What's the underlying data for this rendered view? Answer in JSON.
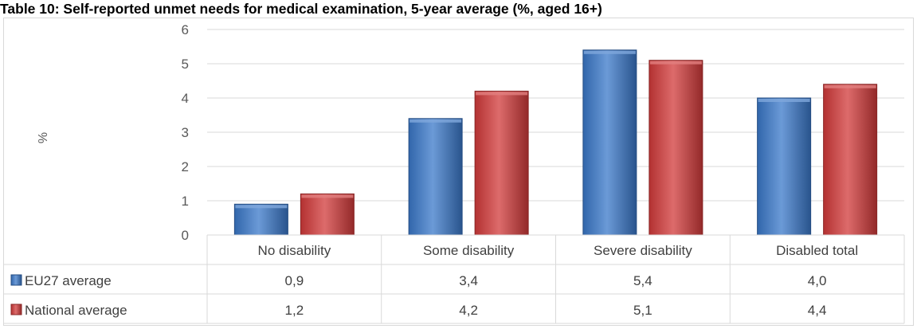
{
  "chart_data": {
    "type": "bar",
    "title": "Table 10: Self-reported unmet needs for medical examination, 5-year average (%, aged 16+)",
    "ylabel": "%",
    "categories": [
      "No disability",
      "Some disability",
      "Severe disability",
      "Disabled total"
    ],
    "ylim": [
      0,
      6
    ],
    "yticks": [
      0,
      1,
      2,
      3,
      4,
      5,
      6
    ],
    "grid": true,
    "legend": "data-table",
    "series": [
      {
        "name": "EU27 average",
        "color": "#3a78c9",
        "values": [
          0.9,
          3.4,
          5.4,
          4.0
        ],
        "labels": [
          "0,9",
          "3,4",
          "5,4",
          "4,0"
        ]
      },
      {
        "name": "National average",
        "color": "#d23a3a",
        "values": [
          1.2,
          4.2,
          5.1,
          4.4
        ],
        "labels": [
          "1,2",
          "4,2",
          "5,1",
          "4,4"
        ]
      }
    ]
  }
}
